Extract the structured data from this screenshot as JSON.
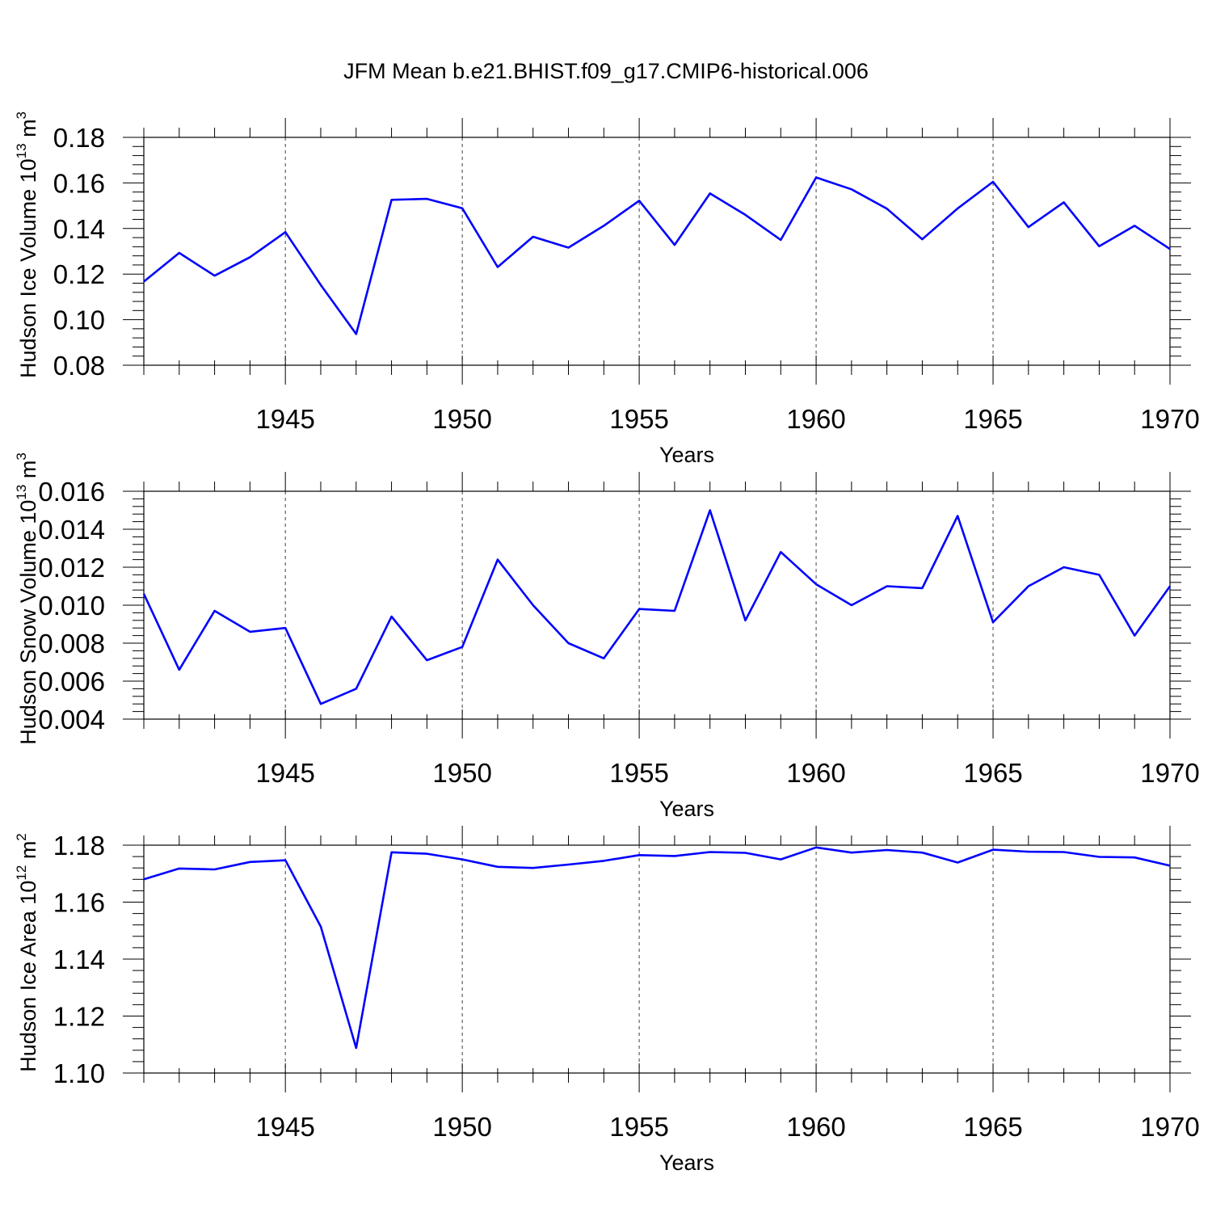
{
  "title": "JFM Mean b.e21.BHIST.f09_g17.CMIP6-historical.006",
  "colors": {
    "series": "#0000ff",
    "axis": "#000000"
  },
  "chart_data": [
    {
      "type": "line",
      "title": "JFM Mean b.e21.BHIST.f09_g17.CMIP6-historical.006",
      "xlabel": "Years",
      "ylabel": {
        "text": "Hudson Ice Volume 10",
        "exponent": "13",
        "unit": " m",
        "unit_exponent": "3"
      },
      "xlim": [
        1941,
        1970
      ],
      "ylim": [
        0.08,
        0.18
      ],
      "x_ticks": [
        1945,
        1950,
        1955,
        1960,
        1965,
        1970
      ],
      "y_ticks": [
        "0.08",
        "0.10",
        "0.12",
        "0.14",
        "0.16",
        "0.18"
      ],
      "grid": "x-dashed",
      "x": [
        1941,
        1942,
        1943,
        1944,
        1945,
        1946,
        1947,
        1948,
        1949,
        1950,
        1951,
        1952,
        1953,
        1954,
        1955,
        1956,
        1957,
        1958,
        1959,
        1960,
        1961,
        1962,
        1963,
        1964,
        1965,
        1966,
        1967,
        1968,
        1969,
        1970
      ],
      "values": [
        0.1167,
        0.1293,
        0.1193,
        0.1274,
        0.1384,
        0.1152,
        0.0937,
        0.1526,
        0.153,
        0.1489,
        0.1231,
        0.1364,
        0.1316,
        0.1412,
        0.1522,
        0.1328,
        0.1554,
        0.146,
        0.135,
        0.1624,
        0.1572,
        0.1487,
        0.1353,
        0.1488,
        0.1605,
        0.1406,
        0.1515,
        0.1322,
        0.1412,
        0.131
      ]
    },
    {
      "type": "line",
      "xlabel": "Years",
      "ylabel": {
        "text": "Hudson Snow Volume 10",
        "exponent": "13",
        "unit": " m",
        "unit_exponent": "3"
      },
      "xlim": [
        1941,
        1970
      ],
      "ylim": [
        0.004,
        0.016
      ],
      "x_ticks": [
        1945,
        1950,
        1955,
        1960,
        1965,
        1970
      ],
      "y_ticks": [
        "0.004",
        "0.006",
        "0.008",
        "0.010",
        "0.012",
        "0.014",
        "0.016"
      ],
      "grid": "x-dashed",
      "x": [
        1941,
        1942,
        1943,
        1944,
        1945,
        1946,
        1947,
        1948,
        1949,
        1950,
        1951,
        1952,
        1953,
        1954,
        1955,
        1956,
        1957,
        1958,
        1959,
        1960,
        1961,
        1962,
        1963,
        1964,
        1965,
        1966,
        1967,
        1968,
        1969,
        1970
      ],
      "values": [
        0.0106,
        0.0066,
        0.0097,
        0.0086,
        0.0088,
        0.0048,
        0.0056,
        0.0094,
        0.0071,
        0.0078,
        0.0124,
        0.01,
        0.008,
        0.0072,
        0.0098,
        0.0097,
        0.015,
        0.0092,
        0.0128,
        0.0111,
        0.01,
        0.011,
        0.0109,
        0.0147,
        0.0091,
        0.011,
        0.012,
        0.0116,
        0.0084,
        0.011
      ]
    },
    {
      "type": "line",
      "xlabel": "Years",
      "ylabel": {
        "text": "Hudson Ice Area 10",
        "exponent": "12",
        "unit": " m",
        "unit_exponent": "2"
      },
      "xlim": [
        1941,
        1970
      ],
      "ylim": [
        1.1,
        1.18
      ],
      "x_ticks": [
        1945,
        1950,
        1955,
        1960,
        1965,
        1970
      ],
      "y_ticks": [
        "1.10",
        "1.12",
        "1.14",
        "1.16",
        "1.18"
      ],
      "grid": "x-dashed",
      "x": [
        1941,
        1942,
        1943,
        1944,
        1945,
        1946,
        1947,
        1948,
        1949,
        1950,
        1951,
        1952,
        1953,
        1954,
        1955,
        1956,
        1957,
        1958,
        1959,
        1960,
        1961,
        1962,
        1963,
        1964,
        1965,
        1966,
        1967,
        1968,
        1969,
        1970
      ],
      "values": [
        1.168,
        1.1718,
        1.1715,
        1.1741,
        1.1747,
        1.1514,
        1.1088,
        1.1775,
        1.177,
        1.175,
        1.1724,
        1.172,
        1.1732,
        1.1745,
        1.1765,
        1.1762,
        1.1776,
        1.1773,
        1.175,
        1.1792,
        1.1774,
        1.1783,
        1.1774,
        1.1739,
        1.1784,
        1.1777,
        1.1776,
        1.1759,
        1.1757,
        1.1728
      ]
    }
  ]
}
